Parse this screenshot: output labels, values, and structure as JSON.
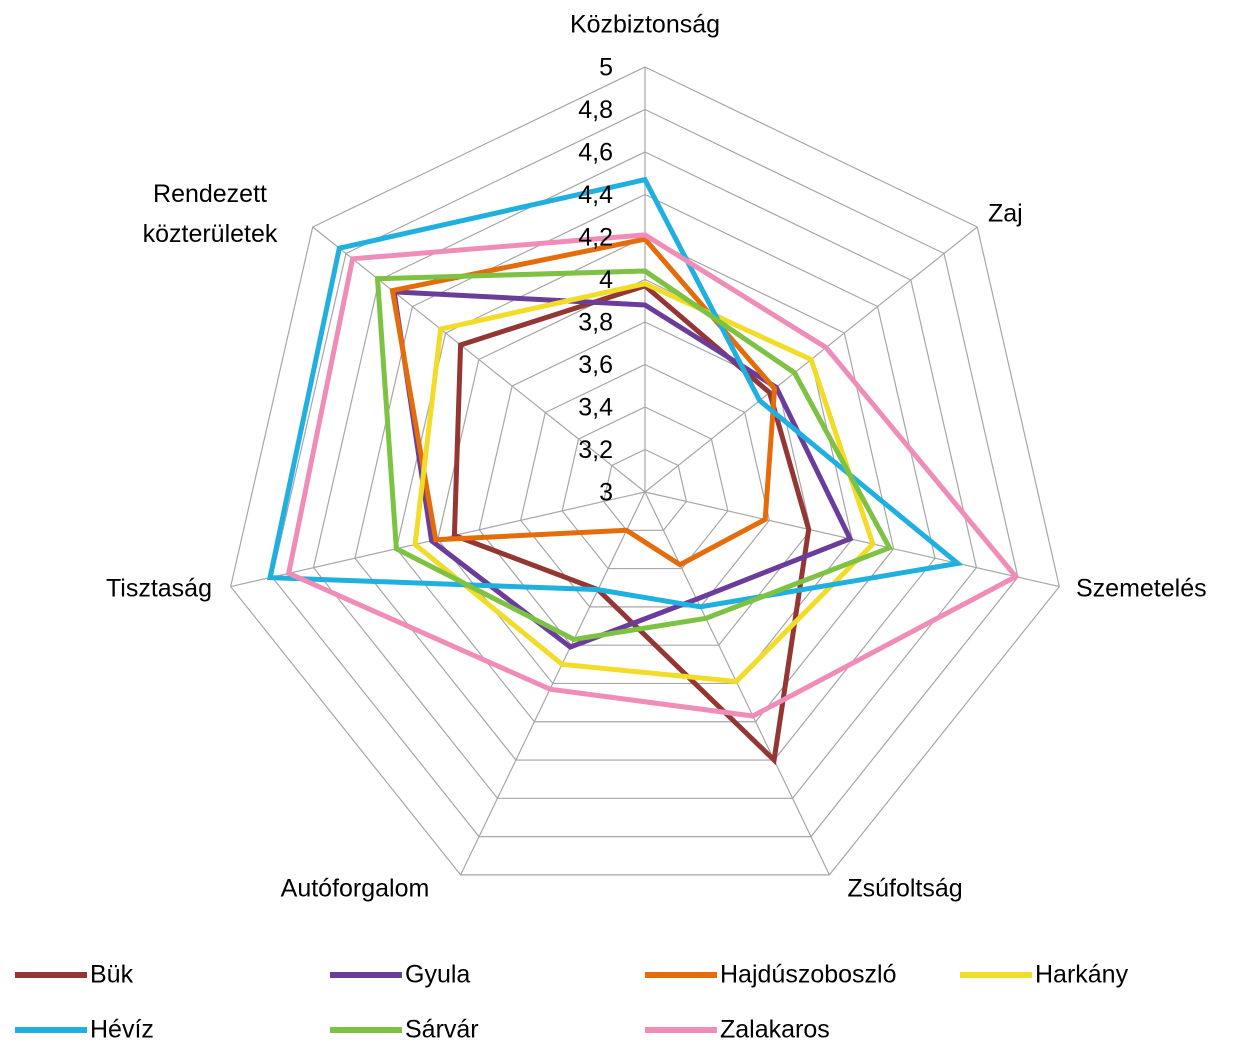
{
  "chart_data": {
    "type": "radar",
    "categories": [
      "Közbiztonság",
      "Zaj",
      "Szemetelés",
      "Zsúfoltság",
      "Autóforgalom",
      "Tisztaság",
      "Rendezett közterületek"
    ],
    "ylim": [
      3,
      5
    ],
    "yticks": [
      3,
      {
        "value": 3.2,
        "label": "3,2"
      },
      {
        "value": 3.4,
        "label": "3,4"
      },
      {
        "value": 3.6,
        "label": "3,6"
      },
      {
        "value": 3.8,
        "label": "3,8"
      },
      4,
      {
        "value": 4.2,
        "label": "4,2"
      },
      {
        "value": 4.4,
        "label": "4,4"
      },
      {
        "value": 4.6,
        "label": "4,6"
      },
      {
        "value": 4.8,
        "label": "4,8"
      },
      5
    ],
    "grid": true,
    "legend": "bottom",
    "series": [
      {
        "name": "Bük",
        "color": "#943634",
        "values": [
          3.97,
          3.75,
          3.79,
          4.4,
          3.51,
          3.92,
          4.11
        ]
      },
      {
        "name": "Gyula",
        "color": "#6a3d9a",
        "values": [
          3.88,
          3.79,
          3.99,
          3.56,
          3.81,
          4.03,
          4.51
        ]
      },
      {
        "name": "Hajdúszoboszló",
        "color": "#e46c0a",
        "values": [
          4.19,
          3.78,
          3.58,
          3.38,
          3.2,
          4.01,
          4.52
        ]
      },
      {
        "name": "Harkány",
        "color": "#f2dc27",
        "values": [
          3.98,
          4.0,
          4.1,
          3.99,
          3.9,
          4.11,
          4.23
        ]
      },
      {
        "name": "Hévíz",
        "color": "#1fb0e0",
        "values": [
          4.47,
          3.69,
          4.51,
          3.6,
          3.51,
          4.81,
          4.84
        ]
      },
      {
        "name": "Sárvár",
        "color": "#7dc242",
        "values": [
          4.04,
          3.9,
          4.18,
          3.66,
          3.77,
          4.2,
          4.61
        ]
      },
      {
        "name": "Zalakaros",
        "color": "#f08cb8",
        "values": [
          4.21,
          4.09,
          4.79,
          4.17,
          4.03,
          4.72,
          4.76
        ]
      }
    ]
  }
}
